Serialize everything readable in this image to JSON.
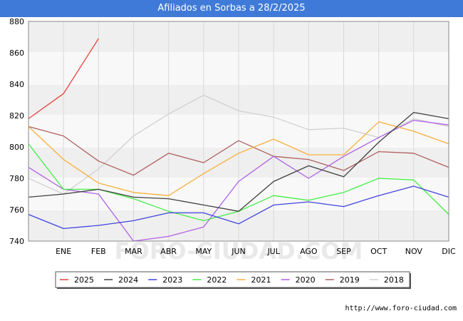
{
  "chart_data": {
    "type": "line",
    "title": "Afiliados en Sorbas a 28/2/2025",
    "categories": [
      "",
      "ENE",
      "FEB",
      "MAR",
      "ABR",
      "MAY",
      "JUN",
      "JUL",
      "AGO",
      "SEP",
      "OCT",
      "NOV",
      "DIC"
    ],
    "ylim": [
      740,
      880
    ],
    "yticks": [
      740,
      760,
      780,
      800,
      820,
      840,
      860,
      880
    ],
    "grid": true,
    "legend_position": "bottom",
    "watermark": "FORO-CIUDAD.COM",
    "source": "http://www.foro-ciudad.com",
    "series": [
      {
        "name": "2025",
        "color": "#e8413c",
        "values": [
          818,
          834,
          869,
          null,
          null,
          null,
          null,
          null,
          null,
          null,
          null,
          null,
          null
        ]
      },
      {
        "name": "2024",
        "color": "#404040",
        "values": [
          768,
          770,
          773,
          768,
          767,
          763,
          759,
          778,
          788,
          781,
          803,
          822,
          818
        ]
      },
      {
        "name": "2023",
        "color": "#4444e0",
        "values": [
          757,
          748,
          750,
          753,
          758,
          758,
          751,
          763,
          765,
          762,
          769,
          775,
          768
        ]
      },
      {
        "name": "2022",
        "color": "#44ee44",
        "values": [
          802,
          773,
          773,
          767,
          759,
          753,
          759,
          769,
          766,
          771,
          780,
          779,
          757
        ]
      },
      {
        "name": "2021",
        "color": "#f8b03c",
        "values": [
          813,
          792,
          777,
          771,
          769,
          783,
          796,
          805,
          795,
          795,
          816,
          810,
          802
        ]
      },
      {
        "name": "2020",
        "color": "#b060e8",
        "values": [
          787,
          773,
          770,
          740,
          743,
          749,
          778,
          794,
          780,
          794,
          806,
          817,
          814
        ]
      },
      {
        "name": "2019",
        "color": "#b06060",
        "values": [
          813,
          807,
          791,
          782,
          796,
          790,
          804,
          794,
          792,
          785,
          797,
          796,
          787
        ]
      },
      {
        "name": "2018",
        "color": "#d0d0d0",
        "values": [
          780,
          770,
          786,
          807,
          821,
          833,
          823,
          819,
          811,
          812,
          806,
          818,
          813
        ]
      }
    ]
  }
}
